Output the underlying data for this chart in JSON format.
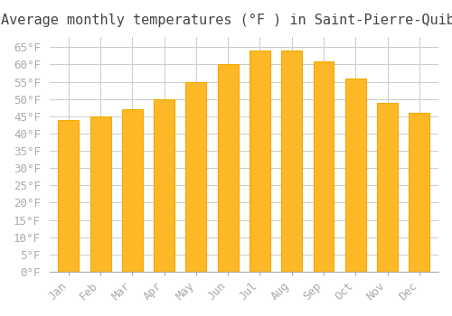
{
  "title": "Average monthly temperatures (°F ) in Saint-Pierre-Quiberon",
  "months": [
    "Jan",
    "Feb",
    "Mar",
    "Apr",
    "May",
    "Jun",
    "Jul",
    "Aug",
    "Sep",
    "Oct",
    "Nov",
    "Dec"
  ],
  "values": [
    44,
    45,
    47,
    50,
    55,
    60,
    64,
    64,
    61,
    56,
    49,
    46
  ],
  "bar_color": "#FDB827",
  "bar_edge_color": "#F5A800",
  "ylim": [
    0,
    68
  ],
  "yticks": [
    0,
    5,
    10,
    15,
    20,
    25,
    30,
    35,
    40,
    45,
    50,
    55,
    60,
    65
  ],
  "ylabel_suffix": "°F",
  "background_color": "#ffffff",
  "grid_color": "#cccccc",
  "title_fontsize": 11,
  "tick_fontsize": 9,
  "font_family": "monospace"
}
